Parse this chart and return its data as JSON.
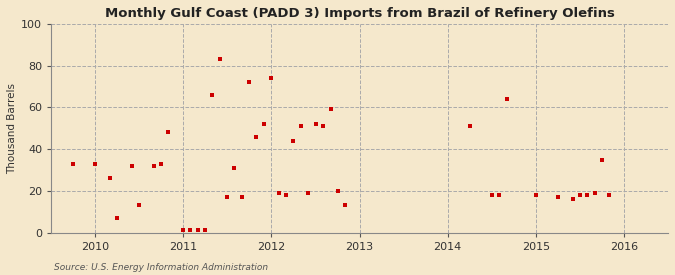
{
  "title": "Monthly Gulf Coast (PADD 3) Imports from Brazil of Refinery Olefins",
  "ylabel": "Thousand Barrels",
  "source": "Source: U.S. Energy Information Administration",
  "background_color": "#f5e8cc",
  "marker_color": "#cc0000",
  "ylim": [
    0,
    100
  ],
  "yticks": [
    0,
    20,
    40,
    60,
    80,
    100
  ],
  "xlim": [
    2009.5,
    2016.5
  ],
  "xticks": [
    2010,
    2011,
    2012,
    2013,
    2014,
    2015,
    2016
  ],
  "data_points": [
    [
      2009.75,
      33
    ],
    [
      2010.0,
      33
    ],
    [
      2010.17,
      26
    ],
    [
      2010.25,
      7
    ],
    [
      2010.42,
      32
    ],
    [
      2010.5,
      13
    ],
    [
      2010.67,
      32
    ],
    [
      2010.75,
      33
    ],
    [
      2010.83,
      48
    ],
    [
      2011.0,
      1
    ],
    [
      2011.08,
      1
    ],
    [
      2011.17,
      1
    ],
    [
      2011.25,
      1
    ],
    [
      2011.33,
      66
    ],
    [
      2011.42,
      83
    ],
    [
      2011.5,
      17
    ],
    [
      2011.58,
      31
    ],
    [
      2011.67,
      17
    ],
    [
      2011.75,
      72
    ],
    [
      2011.83,
      46
    ],
    [
      2011.92,
      52
    ],
    [
      2012.0,
      74
    ],
    [
      2012.08,
      19
    ],
    [
      2012.17,
      18
    ],
    [
      2012.25,
      44
    ],
    [
      2012.33,
      51
    ],
    [
      2012.42,
      19
    ],
    [
      2012.5,
      52
    ],
    [
      2012.58,
      51
    ],
    [
      2012.67,
      59
    ],
    [
      2012.75,
      20
    ],
    [
      2012.83,
      13
    ],
    [
      2014.25,
      51
    ],
    [
      2014.5,
      18
    ],
    [
      2014.58,
      18
    ],
    [
      2014.67,
      64
    ],
    [
      2015.0,
      18
    ],
    [
      2015.25,
      17
    ],
    [
      2015.42,
      16
    ],
    [
      2015.5,
      18
    ],
    [
      2015.58,
      18
    ],
    [
      2015.67,
      19
    ],
    [
      2015.75,
      35
    ],
    [
      2015.83,
      18
    ]
  ]
}
